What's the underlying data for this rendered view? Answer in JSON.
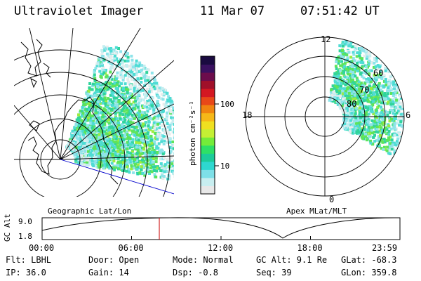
{
  "header": {
    "title": "Ultraviolet Imager",
    "date": "11 Mar 07",
    "time": "07:51:42 UT"
  },
  "panels": {
    "left_label": "Geographic Lat/Lon",
    "right_label": "Apex MLat/MLT",
    "mlt_labels": {
      "top": "12",
      "left": "18",
      "right": "6",
      "bottom": "0"
    },
    "lat_labels": [
      "80",
      "70",
      "60"
    ]
  },
  "colorbar": {
    "unit_label": "photon cm⁻²s⁻¹",
    "ticks": [
      "100",
      "10"
    ],
    "colors": [
      "#e8e8e8",
      "#c8eef0",
      "#7ee0e8",
      "#2ed8d0",
      "#1ccc9a",
      "#2ee066",
      "#74ec3a",
      "#c4f034",
      "#f0e020",
      "#f6b818",
      "#f08410",
      "#e84818",
      "#d41822",
      "#a0102a",
      "#6c0c4c",
      "#3a1060",
      "#1a0a40"
    ]
  },
  "timeline": {
    "ylabel": "GC Alt",
    "ymax": "9.0",
    "ymin": "1.8",
    "ticks": [
      "00:00",
      "06:00",
      "12:00",
      "18:00",
      "23:59"
    ],
    "marker_hours": 7.86
  },
  "status": {
    "flt": "Flt: LBHL",
    "door": "Door: Open",
    "mode": "Mode: Normal",
    "gcalt": "GC Alt: 9.1 Re",
    "glat": "GLat: -68.3",
    "ip": "IP: 36.0",
    "gain": "Gain: 14",
    "dsp": "Dsp:   -0.8",
    "seq": "Seq: 39",
    "glon": "GLon: 359.8"
  }
}
